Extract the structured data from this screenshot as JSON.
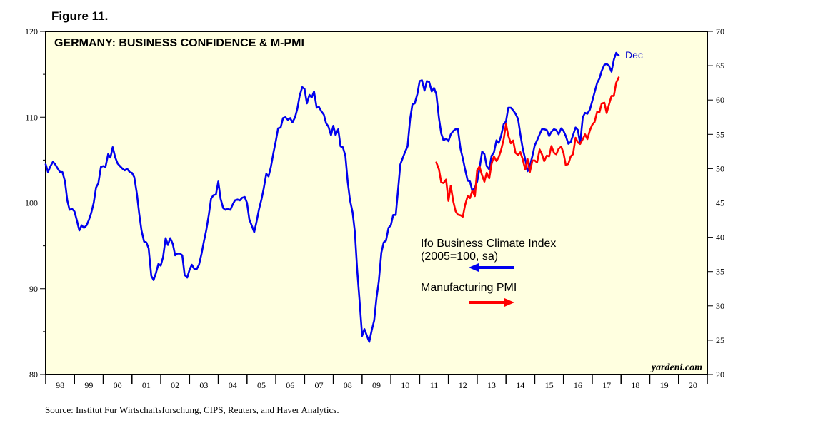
{
  "figure_label": "Figure 11.",
  "source": "Source:  Institut Fur Wirtschaftsforschung, CIPS, Reuters, and Haver Analytics.",
  "credit": "yardeni.com",
  "colors": {
    "ifo": "#0000ee",
    "pmi": "#ff0000",
    "plot_bg": "#ffffe0",
    "end_label": "#0000cc"
  },
  "chart_data": {
    "type": "line",
    "title": "GERMANY: BUSINESS CONFIDENCE & M-PMI",
    "x_categories": [
      "98",
      "99",
      "00",
      "01",
      "02",
      "03",
      "04",
      "05",
      "06",
      "07",
      "08",
      "09",
      "10",
      "11",
      "12",
      "13",
      "14",
      "15",
      "16",
      "17",
      "18",
      "19",
      "20"
    ],
    "xlim": [
      1998.0,
      2021.0
    ],
    "y_left": {
      "lim": [
        80,
        120
      ],
      "ticks": [
        80,
        90,
        100,
        110,
        120
      ]
    },
    "y_right": {
      "lim": [
        20,
        70
      ],
      "ticks": [
        20,
        25,
        30,
        35,
        40,
        45,
        50,
        55,
        60,
        65,
        70
      ]
    },
    "grid": false,
    "end_label": "Dec",
    "series": [
      {
        "name": "Ifo Business Climate Index",
        "name_line2": "(2005=100, sa)",
        "axis": "left",
        "arrow": "left",
        "x": [
          1998.0,
          1998.08,
          1998.17,
          1998.25,
          1998.33,
          1998.42,
          1998.5,
          1998.58,
          1998.67,
          1998.75,
          1998.83,
          1998.92,
          1999.0,
          1999.08,
          1999.17,
          1999.25,
          1999.33,
          1999.42,
          1999.5,
          1999.58,
          1999.67,
          1999.75,
          1999.83,
          1999.92,
          2000.0,
          2000.08,
          2000.17,
          2000.25,
          2000.33,
          2000.42,
          2000.5,
          2000.58,
          2000.67,
          2000.75,
          2000.83,
          2000.92,
          2001.0,
          2001.08,
          2001.17,
          2001.25,
          2001.33,
          2001.42,
          2001.5,
          2001.58,
          2001.67,
          2001.75,
          2001.83,
          2001.92,
          2002.0,
          2002.08,
          2002.17,
          2002.25,
          2002.33,
          2002.42,
          2002.5,
          2002.58,
          2002.67,
          2002.75,
          2002.83,
          2002.92,
          2003.0,
          2003.08,
          2003.17,
          2003.25,
          2003.33,
          2003.42,
          2003.5,
          2003.58,
          2003.67,
          2003.75,
          2003.83,
          2003.92,
          2004.0,
          2004.08,
          2004.17,
          2004.25,
          2004.33,
          2004.42,
          2004.5,
          2004.58,
          2004.67,
          2004.75,
          2004.83,
          2004.92,
          2005.0,
          2005.08,
          2005.17,
          2005.25,
          2005.33,
          2005.42,
          2005.5,
          2005.58,
          2005.67,
          2005.75,
          2005.83,
          2005.92,
          2006.0,
          2006.08,
          2006.17,
          2006.25,
          2006.33,
          2006.42,
          2006.5,
          2006.58,
          2006.67,
          2006.75,
          2006.83,
          2006.92,
          2007.0,
          2007.08,
          2007.17,
          2007.25,
          2007.33,
          2007.42,
          2007.5,
          2007.58,
          2007.67,
          2007.75,
          2007.83,
          2007.92,
          2008.0,
          2008.08,
          2008.17,
          2008.25,
          2008.33,
          2008.42,
          2008.5,
          2008.58,
          2008.67,
          2008.75,
          2008.83,
          2008.92,
          2009.0,
          2009.08,
          2009.17,
          2009.25,
          2009.33,
          2009.42,
          2009.5,
          2009.58,
          2009.67,
          2009.75,
          2009.83,
          2009.92,
          2010.0,
          2010.08,
          2010.17,
          2010.25,
          2010.33,
          2010.42,
          2010.5,
          2010.58,
          2010.67,
          2010.75,
          2010.83,
          2010.92,
          2011.0,
          2011.08,
          2011.17,
          2011.25,
          2011.33,
          2011.42,
          2011.5,
          2011.58,
          2011.67,
          2011.75,
          2011.83,
          2011.92,
          2012.0,
          2012.08,
          2012.17,
          2012.25,
          2012.33,
          2012.42,
          2012.5,
          2012.58,
          2012.67,
          2012.75,
          2012.83,
          2012.92,
          2013.0,
          2013.08,
          2013.17,
          2013.25,
          2013.33,
          2013.42,
          2013.5,
          2013.58,
          2013.67,
          2013.75,
          2013.83,
          2013.92,
          2014.0,
          2014.08,
          2014.17,
          2014.25,
          2014.33,
          2014.42,
          2014.5,
          2014.58,
          2014.67,
          2014.75,
          2014.83,
          2014.92,
          2015.0,
          2015.08,
          2015.17,
          2015.25,
          2015.33,
          2015.42,
          2015.5,
          2015.58,
          2015.67,
          2015.75,
          2015.83,
          2015.92,
          2016.0,
          2016.08,
          2016.17,
          2016.25,
          2016.33,
          2016.42,
          2016.5,
          2016.58,
          2016.67,
          2016.75,
          2016.83,
          2016.92,
          2017.0,
          2017.08,
          2017.17,
          2017.25,
          2017.33,
          2017.42,
          2017.5,
          2017.58,
          2017.67,
          2017.75,
          2017.83,
          2017.92
        ],
        "values": [
          104.5,
          103.6,
          104.3,
          104.8,
          104.5,
          104.0,
          103.6,
          103.6,
          102.5,
          100.3,
          99.2,
          99.3,
          99.0,
          98.0,
          96.8,
          97.4,
          97.1,
          97.4,
          98.0,
          98.8,
          100.0,
          101.8,
          102.3,
          104.2,
          104.3,
          104.2,
          105.7,
          105.3,
          106.5,
          105.3,
          104.6,
          104.3,
          104.0,
          103.8,
          104.0,
          103.6,
          103.5,
          103.0,
          101.1,
          98.8,
          96.8,
          95.5,
          95.4,
          94.7,
          91.5,
          91.0,
          91.8,
          92.9,
          92.7,
          93.7,
          95.9,
          95.1,
          95.9,
          95.2,
          93.9,
          94.1,
          94.1,
          93.9,
          91.6,
          91.3,
          92.2,
          92.8,
          92.3,
          92.3,
          92.8,
          94.1,
          95.5,
          96.8,
          98.6,
          100.5,
          100.9,
          101.0,
          102.5,
          100.5,
          99.4,
          99.2,
          99.3,
          99.2,
          99.8,
          100.3,
          100.4,
          100.3,
          100.6,
          100.7,
          100.0,
          98.1,
          97.3,
          96.6,
          97.8,
          99.3,
          100.4,
          101.7,
          103.4,
          103.1,
          104.2,
          105.9,
          107.2,
          108.7,
          108.8,
          109.9,
          110.0,
          109.7,
          109.9,
          109.4,
          110.0,
          111.0,
          112.5,
          113.5,
          113.3,
          111.6,
          112.6,
          112.3,
          113.0,
          111.1,
          111.2,
          110.7,
          110.3,
          109.3,
          108.9,
          107.9,
          109.0,
          107.9,
          108.6,
          106.6,
          106.5,
          105.5,
          102.5,
          100.3,
          98.9,
          96.6,
          92.2,
          88.3,
          84.5,
          85.3,
          84.5,
          83.8,
          85.1,
          86.3,
          88.9,
          90.8,
          94.2,
          95.4,
          95.6,
          97.1,
          97.4,
          98.6,
          98.6,
          101.5,
          104.5,
          105.3,
          106.0,
          106.6,
          109.8,
          111.5,
          111.6,
          112.7,
          114.2,
          114.3,
          113.1,
          114.2,
          114.1,
          113.0,
          113.4,
          112.7,
          109.9,
          108.1,
          107.3,
          107.5,
          107.2,
          108.0,
          108.4,
          108.6,
          108.6,
          106.3,
          105.2,
          103.9,
          102.6,
          102.5,
          101.4,
          101.8,
          102.5,
          104.0,
          106.0,
          105.7,
          104.3,
          103.9,
          105.5,
          105.9,
          107.3,
          107.0,
          107.8,
          109.2,
          109.5,
          111.1,
          111.1,
          110.8,
          110.4,
          109.8,
          108.0,
          106.4,
          105.1,
          103.7,
          104.3,
          105.5,
          106.7,
          107.3,
          108.0,
          108.6,
          108.6,
          108.5,
          107.8,
          108.3,
          108.6,
          108.5,
          108.0,
          108.7,
          108.4,
          107.8,
          106.9,
          107.1,
          107.9,
          108.8,
          108.5,
          106.9,
          110.0,
          110.5,
          110.4,
          110.9,
          111.9,
          112.9,
          114.0,
          114.5,
          115.4,
          116.1,
          116.2,
          116.0,
          115.3,
          116.7,
          117.5,
          117.2
        ]
      },
      {
        "name": "Manufacturing PMI",
        "axis": "right",
        "arrow": "right",
        "x": [
          2011.58,
          2011.67,
          2011.75,
          2011.83,
          2011.92,
          2012.0,
          2012.08,
          2012.17,
          2012.25,
          2012.33,
          2012.42,
          2012.5,
          2012.58,
          2012.67,
          2012.75,
          2012.83,
          2012.92,
          2013.0,
          2013.08,
          2013.17,
          2013.25,
          2013.33,
          2013.42,
          2013.5,
          2013.58,
          2013.67,
          2013.75,
          2013.83,
          2013.92,
          2014.0,
          2014.08,
          2014.17,
          2014.25,
          2014.33,
          2014.42,
          2014.5,
          2014.58,
          2014.67,
          2014.75,
          2014.83,
          2014.92,
          2015.0,
          2015.08,
          2015.17,
          2015.25,
          2015.33,
          2015.42,
          2015.5,
          2015.58,
          2015.67,
          2015.75,
          2015.83,
          2015.92,
          2016.0,
          2016.08,
          2016.17,
          2016.25,
          2016.33,
          2016.42,
          2016.5,
          2016.58,
          2016.67,
          2016.75,
          2016.83,
          2016.92,
          2017.0,
          2017.08,
          2017.17,
          2017.25,
          2017.33,
          2017.42,
          2017.5,
          2017.58,
          2017.67,
          2017.75,
          2017.83,
          2017.92
        ],
        "values": [
          50.9,
          49.9,
          48.0,
          47.9,
          48.4,
          45.3,
          47.5,
          45.2,
          43.8,
          43.3,
          43.2,
          43.0,
          44.7,
          46.0,
          45.7,
          46.8,
          46.0,
          49.8,
          50.3,
          49.0,
          48.1,
          49.4,
          48.6,
          50.7,
          51.8,
          51.1,
          51.7,
          52.7,
          54.3,
          56.5,
          54.8,
          53.7,
          54.1,
          52.3,
          52.0,
          52.4,
          51.4,
          49.9,
          51.4,
          49.5,
          51.2,
          51.2,
          50.9,
          52.8,
          52.1,
          51.1,
          51.9,
          51.8,
          53.3,
          52.3,
          52.1,
          52.9,
          53.2,
          52.3,
          50.5,
          50.7,
          51.8,
          52.1,
          54.5,
          53.8,
          53.6,
          54.3,
          55.0,
          54.3,
          55.6,
          56.4,
          56.8,
          58.3,
          58.2,
          59.5,
          59.6,
          58.1,
          59.3,
          60.6,
          60.6,
          62.5,
          63.3
        ]
      }
    ]
  }
}
